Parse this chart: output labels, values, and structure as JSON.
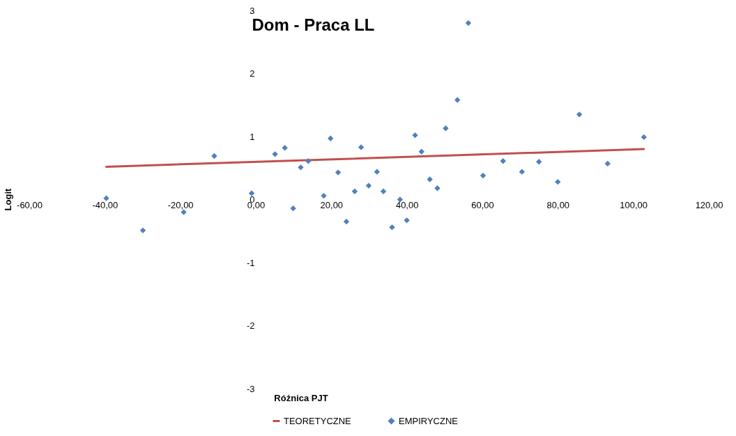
{
  "chart_data": {
    "type": "scatter",
    "title": "Dom - Praca LL",
    "xlabel": "Różnica PJT",
    "ylabel": "Logit",
    "xlim": [
      -60,
      120
    ],
    "ylim": [
      -3,
      3
    ],
    "xticks": [
      {
        "value": -60,
        "label": "-60,00"
      },
      {
        "value": -40,
        "label": "-40,00"
      },
      {
        "value": -20,
        "label": "-20,00"
      },
      {
        "value": 0,
        "label": "0,00"
      },
      {
        "value": 20,
        "label": "20,00"
      },
      {
        "value": 40,
        "label": "40,00"
      },
      {
        "value": 60,
        "label": "60,00"
      },
      {
        "value": 80,
        "label": "80,00"
      },
      {
        "value": 100,
        "label": "100,00"
      },
      {
        "value": 120,
        "label": "120,00"
      }
    ],
    "yticks": [
      -3,
      -2,
      -1,
      0,
      1,
      2,
      3
    ],
    "grid": false,
    "legend": "bottom",
    "series": [
      {
        "name": "TEORETYCZNE",
        "type": "line",
        "color": "#c0504d",
        "marker": "none",
        "line_style": "solid",
        "x": [
          -39.6,
          102.8
        ],
        "values": [
          0.52,
          0.8
        ]
      },
      {
        "name": "EMPIRYCZNE",
        "color": "#4f81bd",
        "marker": "diamond",
        "x": [
          -39.6,
          -29.9,
          -19.1,
          -11.0,
          -1.1,
          5.1,
          7.7,
          9.9,
          11.9,
          13.9,
          18.0,
          19.8,
          21.8,
          24.0,
          26.2,
          27.9,
          29.9,
          32.1,
          33.8,
          36.1,
          38.2,
          40.0,
          42.2,
          43.9,
          46.1,
          48.1,
          50.3,
          53.4,
          56.3,
          60.2,
          65.5,
          70.5,
          75.0,
          80.0,
          85.7,
          93.2,
          102.8
        ],
        "values": [
          0.02,
          -0.49,
          -0.2,
          0.69,
          0.1,
          0.72,
          0.82,
          -0.14,
          0.51,
          0.61,
          0.06,
          0.97,
          0.43,
          -0.35,
          0.13,
          0.83,
          0.22,
          0.44,
          0.13,
          -0.44,
          0.0,
          -0.33,
          1.02,
          0.76,
          0.32,
          0.18,
          1.13,
          1.58,
          2.8,
          0.38,
          0.61,
          0.44,
          0.6,
          0.28,
          1.35,
          0.57,
          0.99
        ]
      }
    ]
  }
}
